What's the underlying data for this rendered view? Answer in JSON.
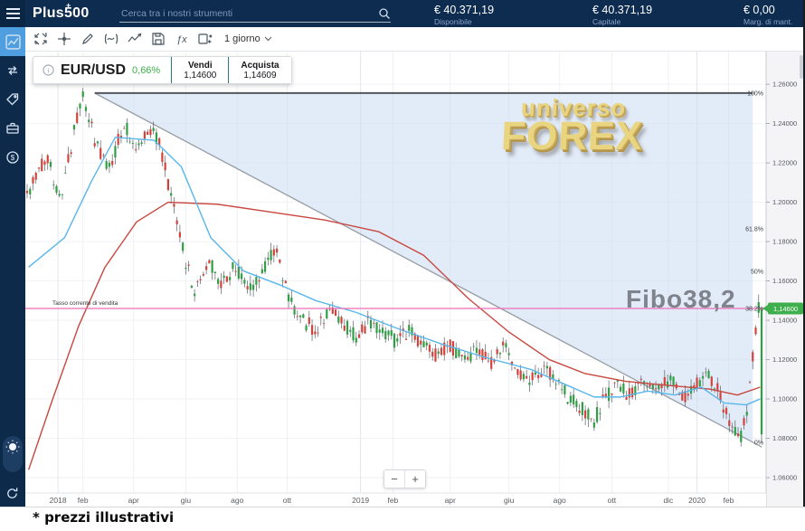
{
  "topbar": {
    "logo": "Plus500",
    "logo_plus": "+",
    "search_placeholder": "Cerca tra i nostri strumenti",
    "metrics": [
      {
        "value": "€ 40.371,19",
        "label": "Disponibile"
      },
      {
        "value": "€ 40.371,19",
        "label": "Capitale"
      },
      {
        "value": "€ 0,00",
        "label": "Marg. di mant."
      }
    ]
  },
  "sidebar": {
    "items": [
      "chart",
      "trade-transfer",
      "tag",
      "portfolio",
      "funds"
    ],
    "active": "chart",
    "footer_items": [
      "light-mode-toggle",
      "refresh"
    ]
  },
  "toolbar": {
    "icons": [
      "fit-chart",
      "crosshair",
      "draw",
      "indicators",
      "line-type",
      "save",
      "functions",
      "compare"
    ],
    "timeframe": "1 giorno"
  },
  "instrument": {
    "name": "EUR/USD",
    "change": "0,66%",
    "sell_label": "Vendi",
    "sell_price": "1,14600",
    "buy_label": "Acquista",
    "buy_price": "1,14609"
  },
  "watermark": {
    "line1": "universo",
    "line2": "FOREX"
  },
  "annotations": {
    "fibo_label": "Fibo38,2",
    "rate_line_label": "Tasso corrente di vendita",
    "price_badge": "1,14600"
  },
  "zoom_controls": {
    "out": "−",
    "in": "+"
  },
  "footnote": "* prezzi illustrativi",
  "chart_data": {
    "type": "candlestick",
    "symbol": "EUR/USD",
    "timeframe": "1 giorno",
    "ylim": [
      1.0453,
      1.2766
    ],
    "grid": true,
    "y_axis": {
      "values": [
        1.26,
        1.24,
        1.22,
        1.2,
        1.18,
        1.16,
        1.14,
        1.12,
        1.1,
        1.08,
        1.06
      ],
      "labels": [
        "1.26000",
        "1.24000",
        "1.22000",
        "1.20000",
        "1.18000",
        "1.16000",
        "1.14000",
        "1.12000",
        "1.10000",
        "1.08000",
        "1.06000"
      ]
    },
    "x_axis": {
      "labels": [
        {
          "text": "2018",
          "f": 0.042,
          "year": true
        },
        {
          "text": "feb",
          "f": 0.076
        },
        {
          "text": "apr",
          "f": 0.145
        },
        {
          "text": "giu",
          "f": 0.216
        },
        {
          "text": "ago",
          "f": 0.286
        },
        {
          "text": "ott",
          "f": 0.354
        },
        {
          "text": "2019",
          "f": 0.454,
          "year": true
        },
        {
          "text": "feb",
          "f": 0.498
        },
        {
          "text": "apr",
          "f": 0.576
        },
        {
          "text": "giu",
          "f": 0.656
        },
        {
          "text": "ago",
          "f": 0.725
        },
        {
          "text": "ott",
          "f": 0.796
        },
        {
          "text": "dic",
          "f": 0.873
        },
        {
          "text": "2020",
          "f": 0.912,
          "year": true
        },
        {
          "text": "feb",
          "f": 0.955
        }
      ]
    },
    "price_path": [
      [
        0.002,
        1.205
      ],
      [
        0.027,
        1.225
      ],
      [
        0.045,
        1.2
      ],
      [
        0.065,
        1.238
      ],
      [
        0.076,
        1.253
      ],
      [
        0.094,
        1.229
      ],
      [
        0.112,
        1.217
      ],
      [
        0.131,
        1.24
      ],
      [
        0.149,
        1.227
      ],
      [
        0.165,
        1.238
      ],
      [
        0.179,
        1.231
      ],
      [
        0.198,
        1.2
      ],
      [
        0.216,
        1.17
      ],
      [
        0.228,
        1.154
      ],
      [
        0.247,
        1.17
      ],
      [
        0.265,
        1.159
      ],
      [
        0.283,
        1.167
      ],
      [
        0.302,
        1.154
      ],
      [
        0.32,
        1.163
      ],
      [
        0.338,
        1.178
      ],
      [
        0.357,
        1.15
      ],
      [
        0.375,
        1.14
      ],
      [
        0.393,
        1.135
      ],
      [
        0.411,
        1.145
      ],
      [
        0.43,
        1.138
      ],
      [
        0.448,
        1.131
      ],
      [
        0.466,
        1.14
      ],
      [
        0.485,
        1.135
      ],
      [
        0.503,
        1.129
      ],
      [
        0.521,
        1.135
      ],
      [
        0.54,
        1.127
      ],
      [
        0.558,
        1.121
      ],
      [
        0.576,
        1.128
      ],
      [
        0.595,
        1.119
      ],
      [
        0.613,
        1.125
      ],
      [
        0.631,
        1.117
      ],
      [
        0.65,
        1.127
      ],
      [
        0.668,
        1.114
      ],
      [
        0.686,
        1.109
      ],
      [
        0.705,
        1.117
      ],
      [
        0.723,
        1.107
      ],
      [
        0.741,
        1.099
      ],
      [
        0.759,
        1.094
      ],
      [
        0.772,
        1.089
      ],
      [
        0.786,
        1.1
      ],
      [
        0.802,
        1.108
      ],
      [
        0.82,
        1.102
      ],
      [
        0.839,
        1.11
      ],
      [
        0.857,
        1.104
      ],
      [
        0.875,
        1.11
      ],
      [
        0.894,
        1.101
      ],
      [
        0.912,
        1.107
      ],
      [
        0.93,
        1.112
      ],
      [
        0.943,
        1.102
      ],
      [
        0.957,
        1.087
      ],
      [
        0.97,
        1.078
      ],
      [
        0.979,
        1.092
      ],
      [
        0.989,
        1.124
      ],
      [
        0.995,
        1.146
      ],
      [
        1.0,
        1.146
      ]
    ],
    "last_candle": {
      "open": 1.082,
      "close": 1.1455,
      "high": 1.1468,
      "low": 1.0775
    },
    "current_price": 1.146,
    "overlays": {
      "ma_fast": {
        "color": "#58b7ea",
        "points": [
          [
            0.002,
            1.167
          ],
          [
            0.051,
            1.182
          ],
          [
            0.088,
            1.211
          ],
          [
            0.12,
            1.233
          ],
          [
            0.173,
            1.2315
          ],
          [
            0.21,
            1.218
          ],
          [
            0.25,
            1.182
          ],
          [
            0.295,
            1.165
          ],
          [
            0.344,
            1.158
          ],
          [
            0.393,
            1.15
          ],
          [
            0.448,
            1.144
          ],
          [
            0.503,
            1.136
          ],
          [
            0.564,
            1.128
          ],
          [
            0.625,
            1.121
          ],
          [
            0.686,
            1.115
          ],
          [
            0.735,
            1.107
          ],
          [
            0.772,
            1.101
          ],
          [
            0.808,
            1.101
          ],
          [
            0.845,
            1.104
          ],
          [
            0.882,
            1.102
          ],
          [
            0.918,
            1.106
          ],
          [
            0.949,
            1.098
          ],
          [
            0.979,
            1.097
          ],
          [
            0.998,
            1.1
          ]
        ]
      },
      "ma_slow": {
        "color": "#c8473f",
        "points": [
          [
            0.002,
            1.064
          ],
          [
            0.033,
            1.098
          ],
          [
            0.07,
            1.137
          ],
          [
            0.106,
            1.167
          ],
          [
            0.149,
            1.19
          ],
          [
            0.192,
            1.2
          ],
          [
            0.259,
            1.199
          ],
          [
            0.332,
            1.195
          ],
          [
            0.405,
            1.191
          ],
          [
            0.479,
            1.185
          ],
          [
            0.54,
            1.173
          ],
          [
            0.601,
            1.151
          ],
          [
            0.656,
            1.134
          ],
          [
            0.711,
            1.12
          ],
          [
            0.759,
            1.113
          ],
          [
            0.814,
            1.109
          ],
          [
            0.869,
            1.107
          ],
          [
            0.93,
            1.105
          ],
          [
            0.967,
            1.102
          ],
          [
            0.998,
            1.106
          ]
        ]
      }
    },
    "fibonacci": {
      "high_price": 1.2555,
      "low_price": 1.078,
      "right_edge_f": 0.988,
      "levels": [
        {
          "label": "100%",
          "price": 1.2555
        },
        {
          "label": "61.8%",
          "price": 1.1865
        },
        {
          "label": "50%",
          "price": 1.1648
        },
        {
          "label": "38.2%",
          "price": 1.146
        },
        {
          "label": "0%",
          "price": 1.078
        }
      ]
    },
    "trendline": {
      "from_f": 0.092,
      "from_price": 1.2555,
      "to_f": 1.0,
      "to_price": 1.072
    },
    "rate_line": {
      "price": 1.146,
      "color": "#ef6eb8"
    },
    "colors": {
      "up": "#2f9e44",
      "down": "#d4423c",
      "wick": "#5a5f66",
      "shading": "rgba(203,218,243,0.55)"
    }
  }
}
